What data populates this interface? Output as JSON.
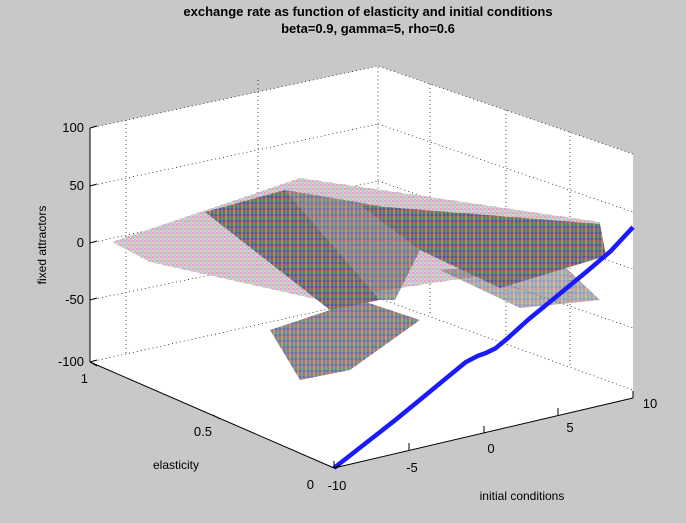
{
  "chart_data": {
    "type": "surface3d",
    "title": "exchange rate as function of elasticity and initial conditions",
    "subtitle": "beta=0.9, gamma=5, rho=0.6",
    "xlabel": "initial conditions",
    "ylabel": "elasticity",
    "zlabel": "fixed attractors",
    "xlim": [
      -10,
      10
    ],
    "ylim": [
      0,
      1
    ],
    "zlim": [
      -100,
      100
    ],
    "x_ticks": [
      "-10",
      "-5",
      "0",
      "5",
      "10"
    ],
    "y_ticks": [
      "0",
      "0.5",
      "1"
    ],
    "z_ticks": [
      "-100",
      "-50",
      "0",
      "50",
      "100"
    ],
    "grid": true,
    "line_series": {
      "color": "#1a1aff",
      "elasticity": 0,
      "points": [
        [
          -10,
          -100
        ],
        [
          -8,
          -86
        ],
        [
          -6,
          -72
        ],
        [
          -4,
          -57
        ],
        [
          -2,
          -42
        ],
        [
          -1.2,
          -36
        ],
        [
          -0.4,
          -33
        ],
        [
          0.2,
          -32
        ],
        [
          0.8,
          -30
        ],
        [
          1.6,
          -24
        ],
        [
          3,
          -12
        ],
        [
          5,
          3
        ],
        [
          7,
          18
        ],
        [
          8.5,
          30
        ],
        [
          10,
          46
        ]
      ]
    },
    "surface_note": "dense multicolored attractor bands around z=0"
  },
  "colors": {
    "background": "#c8c8c8",
    "axes_background": "#ffffff",
    "line": "#1a1aff"
  }
}
